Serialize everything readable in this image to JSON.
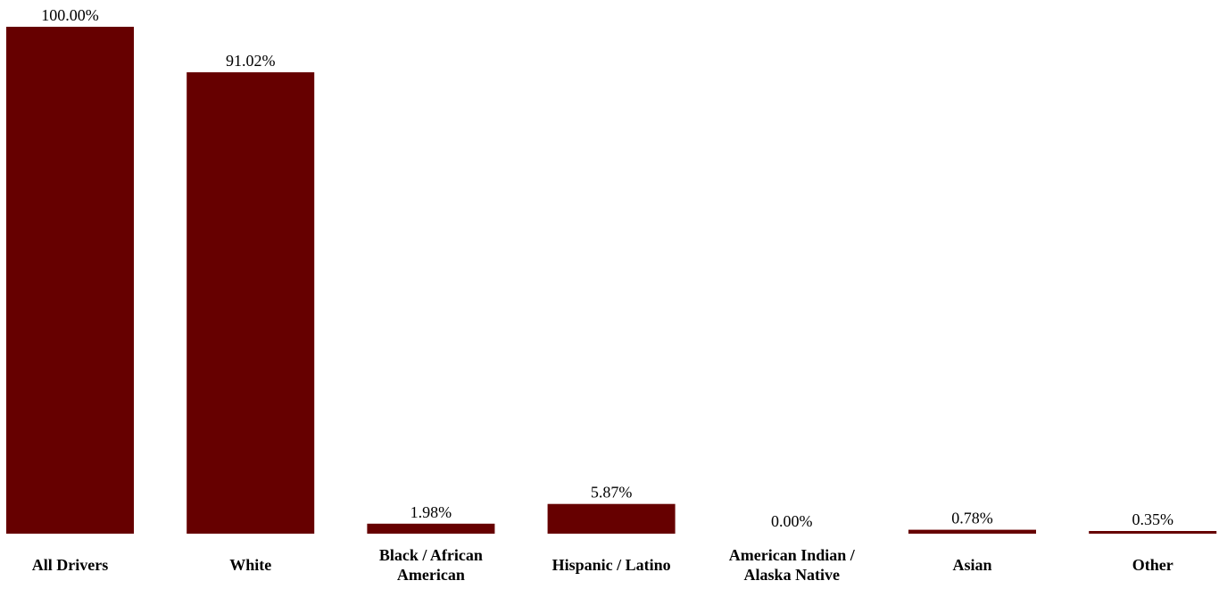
{
  "chart_data": {
    "type": "bar",
    "categories": [
      [
        "All Drivers"
      ],
      [
        "White"
      ],
      [
        "Black / African",
        "American"
      ],
      [
        "Hispanic / Latino"
      ],
      [
        "American Indian /",
        "Alaska Native"
      ],
      [
        "Asian"
      ],
      [
        "Other"
      ]
    ],
    "values": [
      100.0,
      91.02,
      1.98,
      5.87,
      0.0,
      0.78,
      0.35
    ],
    "value_labels": [
      "100.00%",
      "91.02%",
      "1.98%",
      "5.87%",
      "0.00%",
      "0.78%",
      "0.35%"
    ],
    "title": "",
    "xlabel": "",
    "ylabel": "",
    "ylim": [
      0,
      100
    ],
    "grid": false,
    "legend": "none",
    "bar_color": "#660000"
  }
}
